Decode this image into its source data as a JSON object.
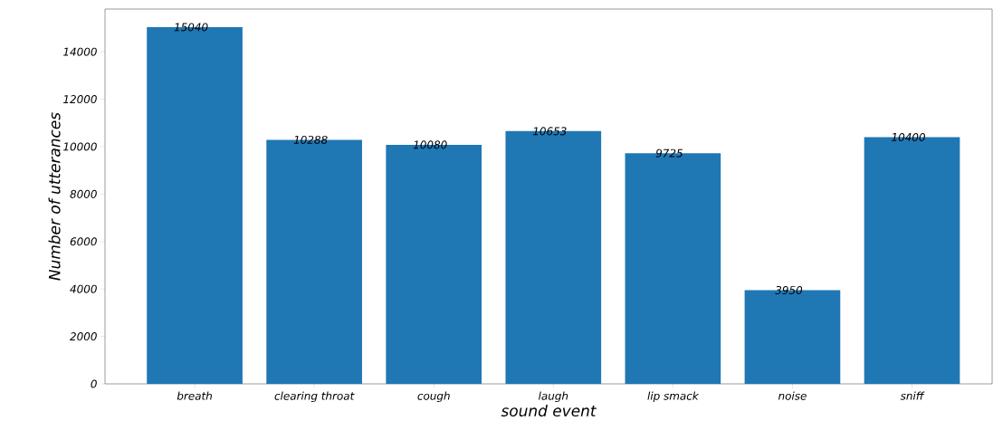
{
  "chart_data": {
    "type": "bar",
    "xlabel": "sound event",
    "ylabel": "Number of utterances",
    "categories": [
      "breath",
      "clearing throat",
      "cough",
      "laugh",
      "lip smack",
      "noise",
      "sniff"
    ],
    "values": [
      15040,
      10288,
      10080,
      10653,
      9725,
      3950,
      10400
    ],
    "color": "#1f77b4",
    "ylim": [
      0,
      15800
    ],
    "yticks": [
      0,
      2000,
      4000,
      6000,
      8000,
      10000,
      12000,
      14000
    ],
    "data_labels": true
  }
}
